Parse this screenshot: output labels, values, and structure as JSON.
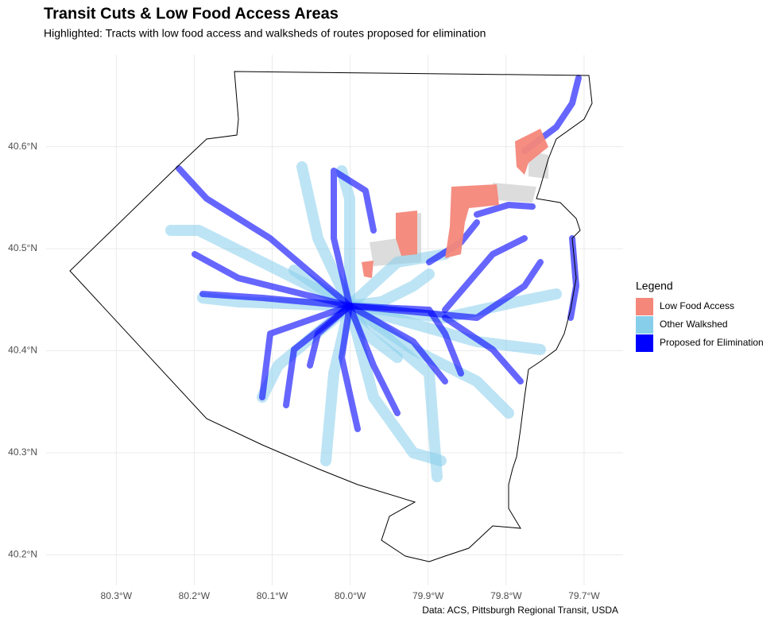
{
  "chart_data": {
    "type": "map",
    "title": "Transit Cuts & Low Food Access Areas",
    "subtitle": "Highlighted: Tracts with low food access and walksheds of routes proposed for elimination",
    "caption": "Data: ACS, Pittsburgh Regional Transit, USDA",
    "xlim": [
      -80.39,
      -79.65
    ],
    "ylim": [
      40.17,
      40.69
    ],
    "xticks": [
      {
        "value": -80.3,
        "label": "80.3°W"
      },
      {
        "value": -80.2,
        "label": "80.2°W"
      },
      {
        "value": -80.1,
        "label": "80.1°W"
      },
      {
        "value": -80.0,
        "label": "80.0°W"
      },
      {
        "value": -79.9,
        "label": "79.9°W"
      },
      {
        "value": -79.8,
        "label": "79.8°W"
      },
      {
        "value": -79.7,
        "label": "79.7°W"
      }
    ],
    "yticks": [
      {
        "value": 40.2,
        "label": "40.2°N"
      },
      {
        "value": 40.3,
        "label": "40.3°N"
      },
      {
        "value": 40.4,
        "label": "40.4°N"
      },
      {
        "value": 40.5,
        "label": "40.5°N"
      },
      {
        "value": 40.6,
        "label": "40.6°N"
      }
    ],
    "grid": true,
    "legend": {
      "title": "Legend",
      "entries": [
        {
          "name": "Low Food Access",
          "color": "#f4877a"
        },
        {
          "name": "Other Walkshed",
          "color": "#87ceeb"
        },
        {
          "name": "Proposed for Elimination",
          "color": "#0000ff"
        }
      ]
    }
  }
}
